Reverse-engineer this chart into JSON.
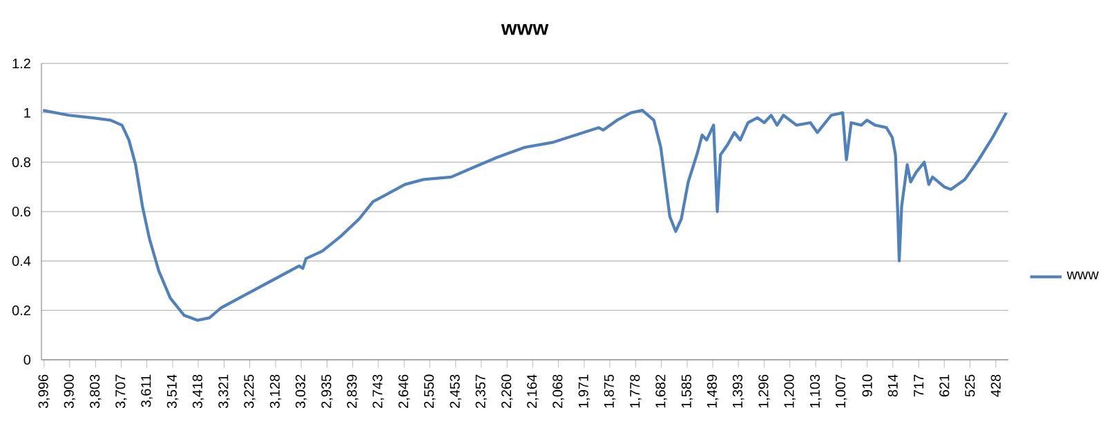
{
  "chart_data": {
    "type": "line",
    "title": "www",
    "legend": "right",
    "grid": "y",
    "xlim": [
      4006,
      381
    ],
    "ylim": [
      0,
      1.2
    ],
    "yticks": [
      0,
      0.2,
      0.4,
      0.6,
      0.8,
      1,
      1.2
    ],
    "xticks": [
      {
        "value": 3996,
        "label": "3,996"
      },
      {
        "value": 3900,
        "label": "3,900"
      },
      {
        "value": 3803,
        "label": "3,803"
      },
      {
        "value": 3707,
        "label": "3,707"
      },
      {
        "value": 3611,
        "label": "3,611"
      },
      {
        "value": 3514,
        "label": "3,514"
      },
      {
        "value": 3418,
        "label": "3,418"
      },
      {
        "value": 3321,
        "label": "3,321"
      },
      {
        "value": 3225,
        "label": "3,225"
      },
      {
        "value": 3128,
        "label": "3,128"
      },
      {
        "value": 3032,
        "label": "3,032"
      },
      {
        "value": 2935,
        "label": "2,935"
      },
      {
        "value": 2839,
        "label": "2,839"
      },
      {
        "value": 2743,
        "label": "2,743"
      },
      {
        "value": 2646,
        "label": "2,646"
      },
      {
        "value": 2550,
        "label": "2,550"
      },
      {
        "value": 2453,
        "label": "2,453"
      },
      {
        "value": 2357,
        "label": "2,357"
      },
      {
        "value": 2260,
        "label": "2,260"
      },
      {
        "value": 2164,
        "label": "2,164"
      },
      {
        "value": 2068,
        "label": "2,068"
      },
      {
        "value": 1971,
        "label": "1,971"
      },
      {
        "value": 1875,
        "label": "1,875"
      },
      {
        "value": 1778,
        "label": "1,778"
      },
      {
        "value": 1682,
        "label": "1,682"
      },
      {
        "value": 1585,
        "label": "1,585"
      },
      {
        "value": 1489,
        "label": "1,489"
      },
      {
        "value": 1393,
        "label": "1,393"
      },
      {
        "value": 1296,
        "label": "1,296"
      },
      {
        "value": 1200,
        "label": "1,200"
      },
      {
        "value": 1103,
        "label": "1,103"
      },
      {
        "value": 1007,
        "label": "1,007"
      },
      {
        "value": 910,
        "label": "910"
      },
      {
        "value": 814,
        "label": "814"
      },
      {
        "value": 717,
        "label": "717"
      },
      {
        "value": 621,
        "label": "621"
      },
      {
        "value": 525,
        "label": "525"
      },
      {
        "value": 428,
        "label": "428"
      }
    ],
    "x": [
      4000,
      3903,
      3816,
      3747,
      3704,
      3678,
      3653,
      3627,
      3601,
      3566,
      3523,
      3471,
      3420,
      3376,
      3333,
      3264,
      3195,
      3126,
      3040,
      3026,
      3014,
      2953,
      2884,
      2815,
      2763,
      2729,
      2643,
      2573,
      2470,
      2384,
      2297,
      2194,
      2090,
      2004,
      1917,
      1900,
      1848,
      1796,
      1753,
      1710,
      1684,
      1667,
      1650,
      1628,
      1607,
      1581,
      1546,
      1529,
      1512,
      1486,
      1472,
      1460,
      1434,
      1408,
      1386,
      1357,
      1322,
      1296,
      1270,
      1248,
      1224,
      1175,
      1123,
      1097,
      1045,
      1002,
      988,
      970,
      932,
      911,
      880,
      838,
      816,
      804,
      795,
      790,
      781,
      760,
      747,
      726,
      696,
      679,
      665,
      621,
      596,
      544,
      492,
      440,
      389
    ],
    "series": [
      {
        "name": "www",
        "color": "#4f81bd",
        "values": [
          1.01,
          0.99,
          0.98,
          0.97,
          0.95,
          0.89,
          0.79,
          0.62,
          0.49,
          0.36,
          0.25,
          0.18,
          0.16,
          0.17,
          0.21,
          0.25,
          0.29,
          0.33,
          0.38,
          0.37,
          0.41,
          0.44,
          0.5,
          0.57,
          0.64,
          0.66,
          0.71,
          0.73,
          0.74,
          0.78,
          0.82,
          0.86,
          0.88,
          0.91,
          0.94,
          0.93,
          0.97,
          1.0,
          1.01,
          0.97,
          0.86,
          0.72,
          0.58,
          0.52,
          0.57,
          0.72,
          0.84,
          0.91,
          0.89,
          0.95,
          0.6,
          0.83,
          0.87,
          0.92,
          0.89,
          0.96,
          0.98,
          0.96,
          0.99,
          0.95,
          0.99,
          0.95,
          0.96,
          0.92,
          0.99,
          1.0,
          0.81,
          0.96,
          0.95,
          0.97,
          0.95,
          0.94,
          0.9,
          0.83,
          0.58,
          0.4,
          0.62,
          0.79,
          0.72,
          0.76,
          0.8,
          0.71,
          0.74,
          0.7,
          0.69,
          0.73,
          0.81,
          0.9,
          1.0
        ]
      }
    ]
  }
}
